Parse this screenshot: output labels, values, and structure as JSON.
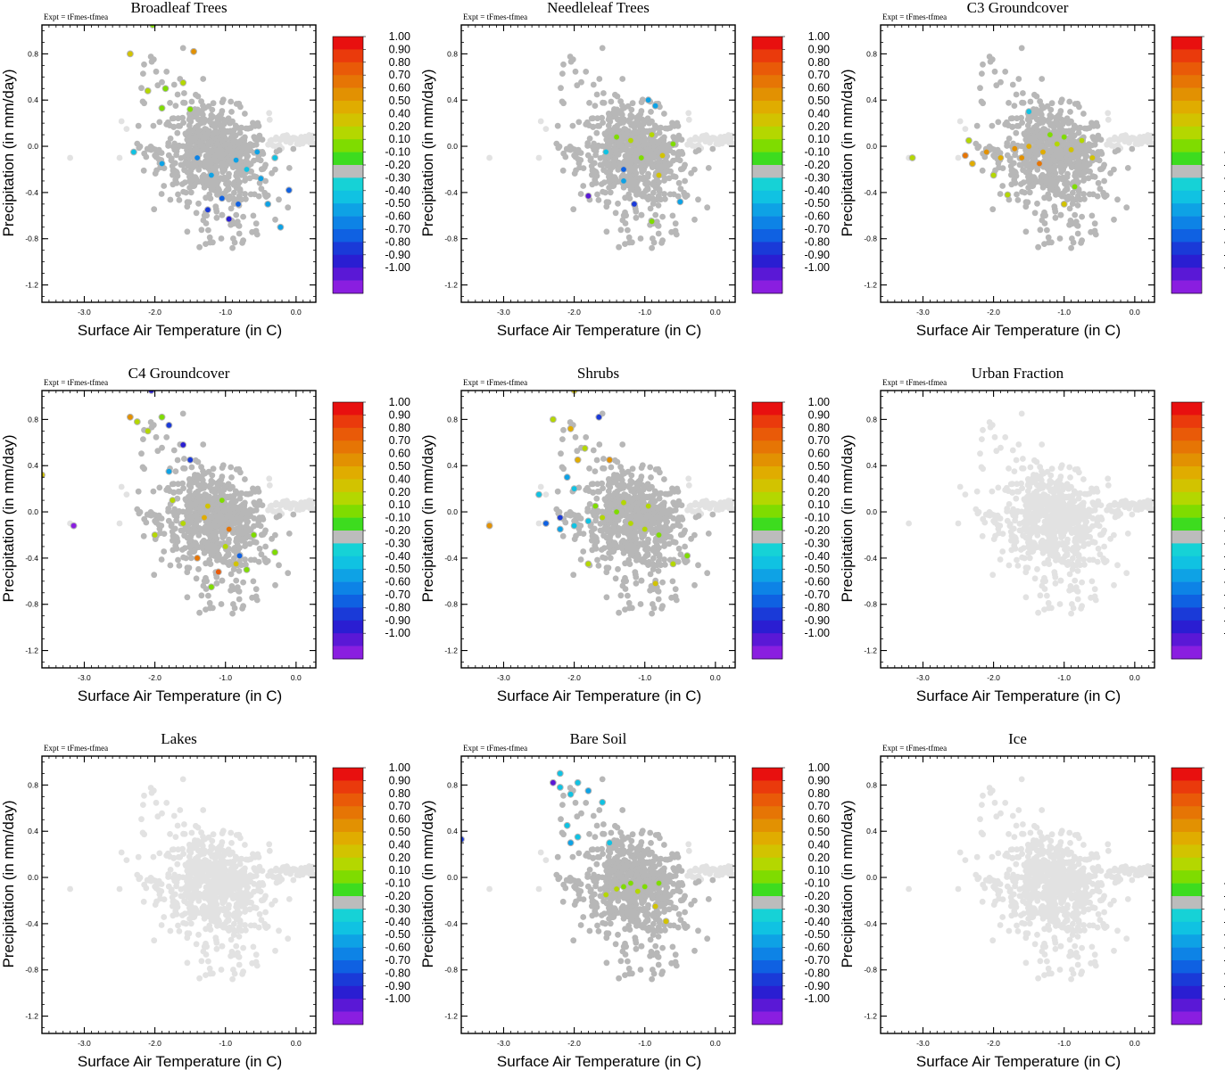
{
  "chart_data": {
    "type": "scatter",
    "shared": {
      "expt_label": "Expt = tFmes-tfmea",
      "xlabel": "Surface Air Temperature (in C)",
      "ylabel": "Precipitation (in mm/day)",
      "xlim": [
        -3.6,
        0.28
      ],
      "ylim": [
        -1.35,
        1.05
      ],
      "xticks": [
        -3.0,
        -2.0,
        -1.0,
        0.0
      ],
      "xtick_labels": [
        "-3.0",
        "-2.0",
        "-1.0",
        "0.0"
      ],
      "yticks": [
        0.8,
        0.4,
        0.0,
        -0.4,
        -0.8,
        -1.2
      ],
      "ytick_labels": [
        "0.8",
        "0.4",
        "0.0",
        "-0.4",
        "-0.8",
        "-1.2"
      ],
      "colorbar": {
        "labels": [
          "1.00",
          "0.90",
          "0.80",
          "0.70",
          "0.60",
          "0.50",
          "0.40",
          "0.20",
          "0.10",
          "-0.10",
          "-0.20",
          "-0.30",
          "-0.40",
          "-0.50",
          "-0.60",
          "-0.70",
          "-0.80",
          "-0.90",
          "-1.00"
        ],
        "colors": [
          "#e8100f",
          "#ea3a0c",
          "#e95a08",
          "#e67505",
          "#e29102",
          "#e0ac00",
          "#d2c300",
          "#b4d700",
          "#7fdc00",
          "#3ddc1f",
          "#bcbcbc",
          "#16d2d6",
          "#10c2e2",
          "#0ea2e5",
          "#0d83e6",
          "#0f61e2",
          "#1a3ad8",
          "#2a1ed2",
          "#5a18d6",
          "#8a1ee0"
        ]
      },
      "point_colors": {
        "missing": "#e2e2e2",
        "neutral": "#b7b7b7"
      }
    },
    "panels": [
      {
        "title": "Broadleaf Trees",
        "points": [
          {
            "x": -2.03,
            "y": 1.05,
            "c": 0.15
          },
          {
            "x": -2.35,
            "y": 0.8,
            "c": 0.4
          },
          {
            "x": -1.45,
            "y": 0.82,
            "c": 0.6
          },
          {
            "x": -1.85,
            "y": 0.5,
            "c": 0.15
          },
          {
            "x": -1.6,
            "y": 0.55,
            "c": 0.2
          },
          {
            "x": -2.1,
            "y": 0.48,
            "c": 0.25
          },
          {
            "x": -1.9,
            "y": 0.33,
            "c": 0.12
          },
          {
            "x": -1.5,
            "y": 0.32,
            "c": 0.15
          },
          {
            "x": -2.3,
            "y": -0.05,
            "c": -0.25
          },
          {
            "x": -1.9,
            "y": -0.15,
            "c": -0.3
          },
          {
            "x": -1.2,
            "y": -0.25,
            "c": -0.3
          },
          {
            "x": -1.05,
            "y": -0.45,
            "c": -0.5
          },
          {
            "x": -0.82,
            "y": -0.5,
            "c": -0.55
          },
          {
            "x": -0.5,
            "y": -0.28,
            "c": -0.3
          },
          {
            "x": -0.4,
            "y": -0.5,
            "c": -0.3
          },
          {
            "x": -0.95,
            "y": -0.63,
            "c": -0.7
          },
          {
            "x": -0.7,
            "y": -0.2,
            "c": -0.25
          },
          {
            "x": -0.22,
            "y": -0.7,
            "c": -0.3
          },
          {
            "x": -0.1,
            "y": -0.38,
            "c": -0.5
          },
          {
            "x": -0.85,
            "y": -0.12,
            "c": -0.3
          },
          {
            "x": -1.4,
            "y": -0.1,
            "c": -0.4
          },
          {
            "x": -0.55,
            "y": -0.05,
            "c": -0.3
          },
          {
            "x": -1.25,
            "y": -0.55,
            "c": -0.6
          },
          {
            "x": -0.3,
            "y": -0.1,
            "c": -0.25
          }
        ]
      },
      {
        "title": "Needleleaf Trees",
        "points": [
          {
            "x": -0.95,
            "y": 0.4,
            "c": -0.3
          },
          {
            "x": -0.85,
            "y": 0.35,
            "c": -0.35
          },
          {
            "x": -1.8,
            "y": -0.43,
            "c": -0.85
          },
          {
            "x": -1.15,
            "y": -0.5,
            "c": -0.6
          },
          {
            "x": -0.9,
            "y": -0.65,
            "c": 0.15
          },
          {
            "x": -0.5,
            "y": -0.48,
            "c": -0.3
          },
          {
            "x": -1.3,
            "y": -0.2,
            "c": -0.5
          },
          {
            "x": -1.55,
            "y": -0.05,
            "c": -0.25
          },
          {
            "x": -1.2,
            "y": 0.05,
            "c": 0.25
          },
          {
            "x": -0.9,
            "y": 0.1,
            "c": 0.2
          },
          {
            "x": -0.75,
            "y": -0.08,
            "c": 0.4
          },
          {
            "x": -1.05,
            "y": -0.1,
            "c": 0.15
          },
          {
            "x": -0.6,
            "y": 0.02,
            "c": 0.15
          },
          {
            "x": -1.4,
            "y": 0.08,
            "c": 0.15
          },
          {
            "x": -0.8,
            "y": -0.25,
            "c": 0.45
          },
          {
            "x": -1.3,
            "y": -0.3,
            "c": -0.3
          }
        ]
      },
      {
        "title": "C3 Groundcover",
        "points": [
          {
            "x": -3.15,
            "y": -0.1,
            "c": 0.25
          },
          {
            "x": -2.4,
            "y": -0.08,
            "c": 0.7
          },
          {
            "x": -2.3,
            "y": -0.15,
            "c": 0.5
          },
          {
            "x": -2.1,
            "y": -0.05,
            "c": 0.6
          },
          {
            "x": -1.9,
            "y": -0.1,
            "c": 0.55
          },
          {
            "x": -1.7,
            "y": -0.02,
            "c": 0.6
          },
          {
            "x": -1.5,
            "y": 0.0,
            "c": 0.55
          },
          {
            "x": -1.3,
            "y": -0.05,
            "c": 0.5
          },
          {
            "x": -1.1,
            "y": 0.02,
            "c": 0.35
          },
          {
            "x": -0.9,
            "y": -0.03,
            "c": 0.45
          },
          {
            "x": -0.75,
            "y": 0.05,
            "c": 0.25
          },
          {
            "x": -2.35,
            "y": 0.05,
            "c": 0.3
          },
          {
            "x": -2.0,
            "y": -0.25,
            "c": 0.3
          },
          {
            "x": -1.8,
            "y": -0.42,
            "c": 0.35
          },
          {
            "x": -1.2,
            "y": 0.1,
            "c": 0.15
          },
          {
            "x": -1.0,
            "y": 0.08,
            "c": 0.15
          },
          {
            "x": -0.85,
            "y": -0.35,
            "c": 0.15
          },
          {
            "x": -1.0,
            "y": -0.5,
            "c": 0.4
          },
          {
            "x": -1.35,
            "y": -0.15,
            "c": 0.7
          },
          {
            "x": -1.6,
            "y": -0.1,
            "c": 0.6
          },
          {
            "x": -0.6,
            "y": -0.1,
            "c": 0.45
          },
          {
            "x": -1.5,
            "y": 0.3,
            "c": -0.25
          }
        ]
      },
      {
        "title": "C4 Groundcover",
        "points": [
          {
            "x": -3.15,
            "y": -0.12,
            "c": -0.9
          },
          {
            "x": -3.6,
            "y": 0.32,
            "c": 0.45
          },
          {
            "x": -2.35,
            "y": 0.82,
            "c": 0.6
          },
          {
            "x": -2.25,
            "y": 0.78,
            "c": 0.2
          },
          {
            "x": -2.1,
            "y": 0.7,
            "c": 0.3
          },
          {
            "x": -1.9,
            "y": 0.82,
            "c": 0.15
          },
          {
            "x": -1.8,
            "y": 0.75,
            "c": -0.6
          },
          {
            "x": -1.6,
            "y": 0.58,
            "c": -0.7
          },
          {
            "x": -2.05,
            "y": 1.05,
            "c": -0.7
          },
          {
            "x": -1.5,
            "y": 0.45,
            "c": -0.6
          },
          {
            "x": -1.8,
            "y": 0.35,
            "c": -0.3
          },
          {
            "x": -1.4,
            "y": -0.4,
            "c": 0.7
          },
          {
            "x": -1.1,
            "y": -0.52,
            "c": 0.8
          },
          {
            "x": -0.95,
            "y": -0.15,
            "c": 0.7
          },
          {
            "x": -1.3,
            "y": -0.05,
            "c": 0.5
          },
          {
            "x": -1.6,
            "y": -0.1,
            "c": 0.2
          },
          {
            "x": -1.0,
            "y": -0.3,
            "c": 0.2
          },
          {
            "x": -0.85,
            "y": -0.45,
            "c": 0.4
          },
          {
            "x": -0.7,
            "y": -0.5,
            "c": 0.15
          },
          {
            "x": -0.6,
            "y": -0.2,
            "c": 0.15
          },
          {
            "x": -1.2,
            "y": -0.65,
            "c": 0.15
          },
          {
            "x": -0.3,
            "y": -0.35,
            "c": 0.15
          },
          {
            "x": -2.0,
            "y": -0.2,
            "c": 0.2
          },
          {
            "x": -1.75,
            "y": 0.1,
            "c": 0.3
          },
          {
            "x": -1.25,
            "y": 0.05,
            "c": 0.45
          },
          {
            "x": -0.8,
            "y": -0.38,
            "c": -0.5
          },
          {
            "x": -1.05,
            "y": 0.1,
            "c": 0.15
          }
        ]
      },
      {
        "title": "Shrubs",
        "points": [
          {
            "x": -3.2,
            "y": -0.12,
            "c": 0.6
          },
          {
            "x": -2.0,
            "y": 1.05,
            "c": 0.4
          },
          {
            "x": -2.3,
            "y": 0.8,
            "c": 0.3
          },
          {
            "x": -2.05,
            "y": 0.72,
            "c": 0.5
          },
          {
            "x": -1.65,
            "y": 0.82,
            "c": -0.6
          },
          {
            "x": -1.85,
            "y": 0.55,
            "c": 0.3
          },
          {
            "x": -1.95,
            "y": 0.45,
            "c": 0.5
          },
          {
            "x": -1.5,
            "y": 0.45,
            "c": 0.65
          },
          {
            "x": -2.1,
            "y": 0.3,
            "c": -0.3
          },
          {
            "x": -2.0,
            "y": 0.2,
            "c": -0.25
          },
          {
            "x": -2.4,
            "y": -0.1,
            "c": -0.55
          },
          {
            "x": -2.2,
            "y": -0.15,
            "c": -0.3
          },
          {
            "x": -2.0,
            "y": -0.12,
            "c": -0.25
          },
          {
            "x": -1.8,
            "y": -0.08,
            "c": -0.25
          },
          {
            "x": -1.6,
            "y": -0.05,
            "c": 0.2
          },
          {
            "x": -1.4,
            "y": 0.0,
            "c": 0.15
          },
          {
            "x": -1.2,
            "y": -0.1,
            "c": 0.3
          },
          {
            "x": -1.0,
            "y": -0.15,
            "c": 0.2
          },
          {
            "x": -0.8,
            "y": -0.2,
            "c": 0.15
          },
          {
            "x": -0.6,
            "y": -0.45,
            "c": 0.3
          },
          {
            "x": -0.4,
            "y": -0.38,
            "c": 0.15
          },
          {
            "x": -0.85,
            "y": -0.62,
            "c": 0.4
          },
          {
            "x": -1.8,
            "y": -0.45,
            "c": 0.25
          },
          {
            "x": -2.2,
            "y": -0.05,
            "c": -0.6
          },
          {
            "x": -1.7,
            "y": 0.05,
            "c": 0.15
          },
          {
            "x": -1.3,
            "y": 0.08,
            "c": 0.35
          },
          {
            "x": -0.95,
            "y": 0.05,
            "c": 0.2
          },
          {
            "x": -2.5,
            "y": 0.15,
            "c": -0.25
          }
        ]
      },
      {
        "title": "Urban Fraction",
        "points": []
      },
      {
        "title": "Lakes",
        "points": []
      },
      {
        "title": "Bare Soil",
        "points": [
          {
            "x": -3.6,
            "y": 0.33,
            "c": -0.6
          },
          {
            "x": -2.3,
            "y": 0.82,
            "c": -0.8
          },
          {
            "x": -2.2,
            "y": 0.9,
            "c": -0.25
          },
          {
            "x": -2.2,
            "y": 0.78,
            "c": -0.25
          },
          {
            "x": -2.05,
            "y": 0.72,
            "c": -0.25
          },
          {
            "x": -1.95,
            "y": 0.82,
            "c": -0.25
          },
          {
            "x": -1.8,
            "y": 0.75,
            "c": -0.3
          },
          {
            "x": -1.6,
            "y": 0.65,
            "c": -0.25
          },
          {
            "x": -2.1,
            "y": 0.45,
            "c": -0.25
          },
          {
            "x": -2.05,
            "y": 0.3,
            "c": -0.35
          },
          {
            "x": -1.95,
            "y": 0.35,
            "c": -0.2
          },
          {
            "x": -1.5,
            "y": 0.3,
            "c": -0.25
          },
          {
            "x": -1.4,
            "y": -0.1,
            "c": 0.2
          },
          {
            "x": -1.2,
            "y": -0.05,
            "c": 0.15
          },
          {
            "x": -1.0,
            "y": -0.08,
            "c": 0.15
          },
          {
            "x": -0.8,
            "y": -0.05,
            "c": 0.15
          },
          {
            "x": -1.55,
            "y": -0.15,
            "c": 0.3
          },
          {
            "x": -0.85,
            "y": -0.25,
            "c": 0.45
          },
          {
            "x": -0.7,
            "y": -0.38,
            "c": 0.45
          },
          {
            "x": -1.1,
            "y": -0.12,
            "c": 0.2
          },
          {
            "x": -1.3,
            "y": -0.08,
            "c": 0.15
          }
        ]
      },
      {
        "title": "Ice",
        "points": []
      }
    ]
  }
}
